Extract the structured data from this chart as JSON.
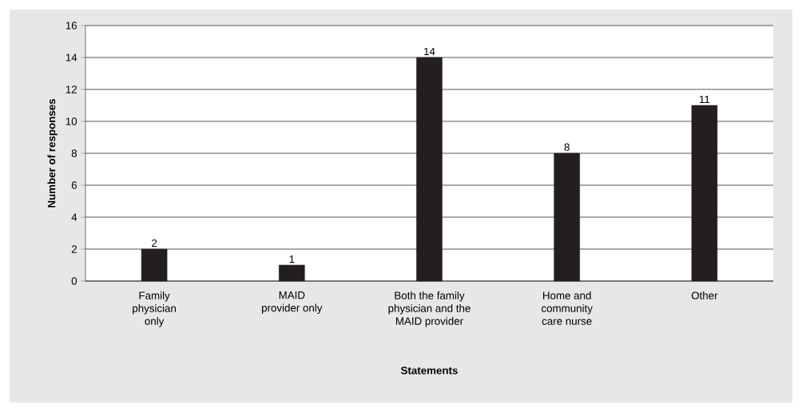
{
  "chart_data": {
    "type": "bar",
    "xlabel": "Statements",
    "ylabel": "Number of responses",
    "categories": [
      "Family physician only",
      "MAID provider only",
      "Both the family physician and the MAID provider",
      "Home and community care nurse",
      "Other"
    ],
    "values": [
      2,
      1,
      14,
      8,
      11
    ],
    "color": "#231f20",
    "ylim": [
      0,
      16
    ],
    "yticks": [
      0,
      2,
      4,
      6,
      8,
      10,
      12,
      14,
      16
    ],
    "grid": "y",
    "data_labels": true
  }
}
